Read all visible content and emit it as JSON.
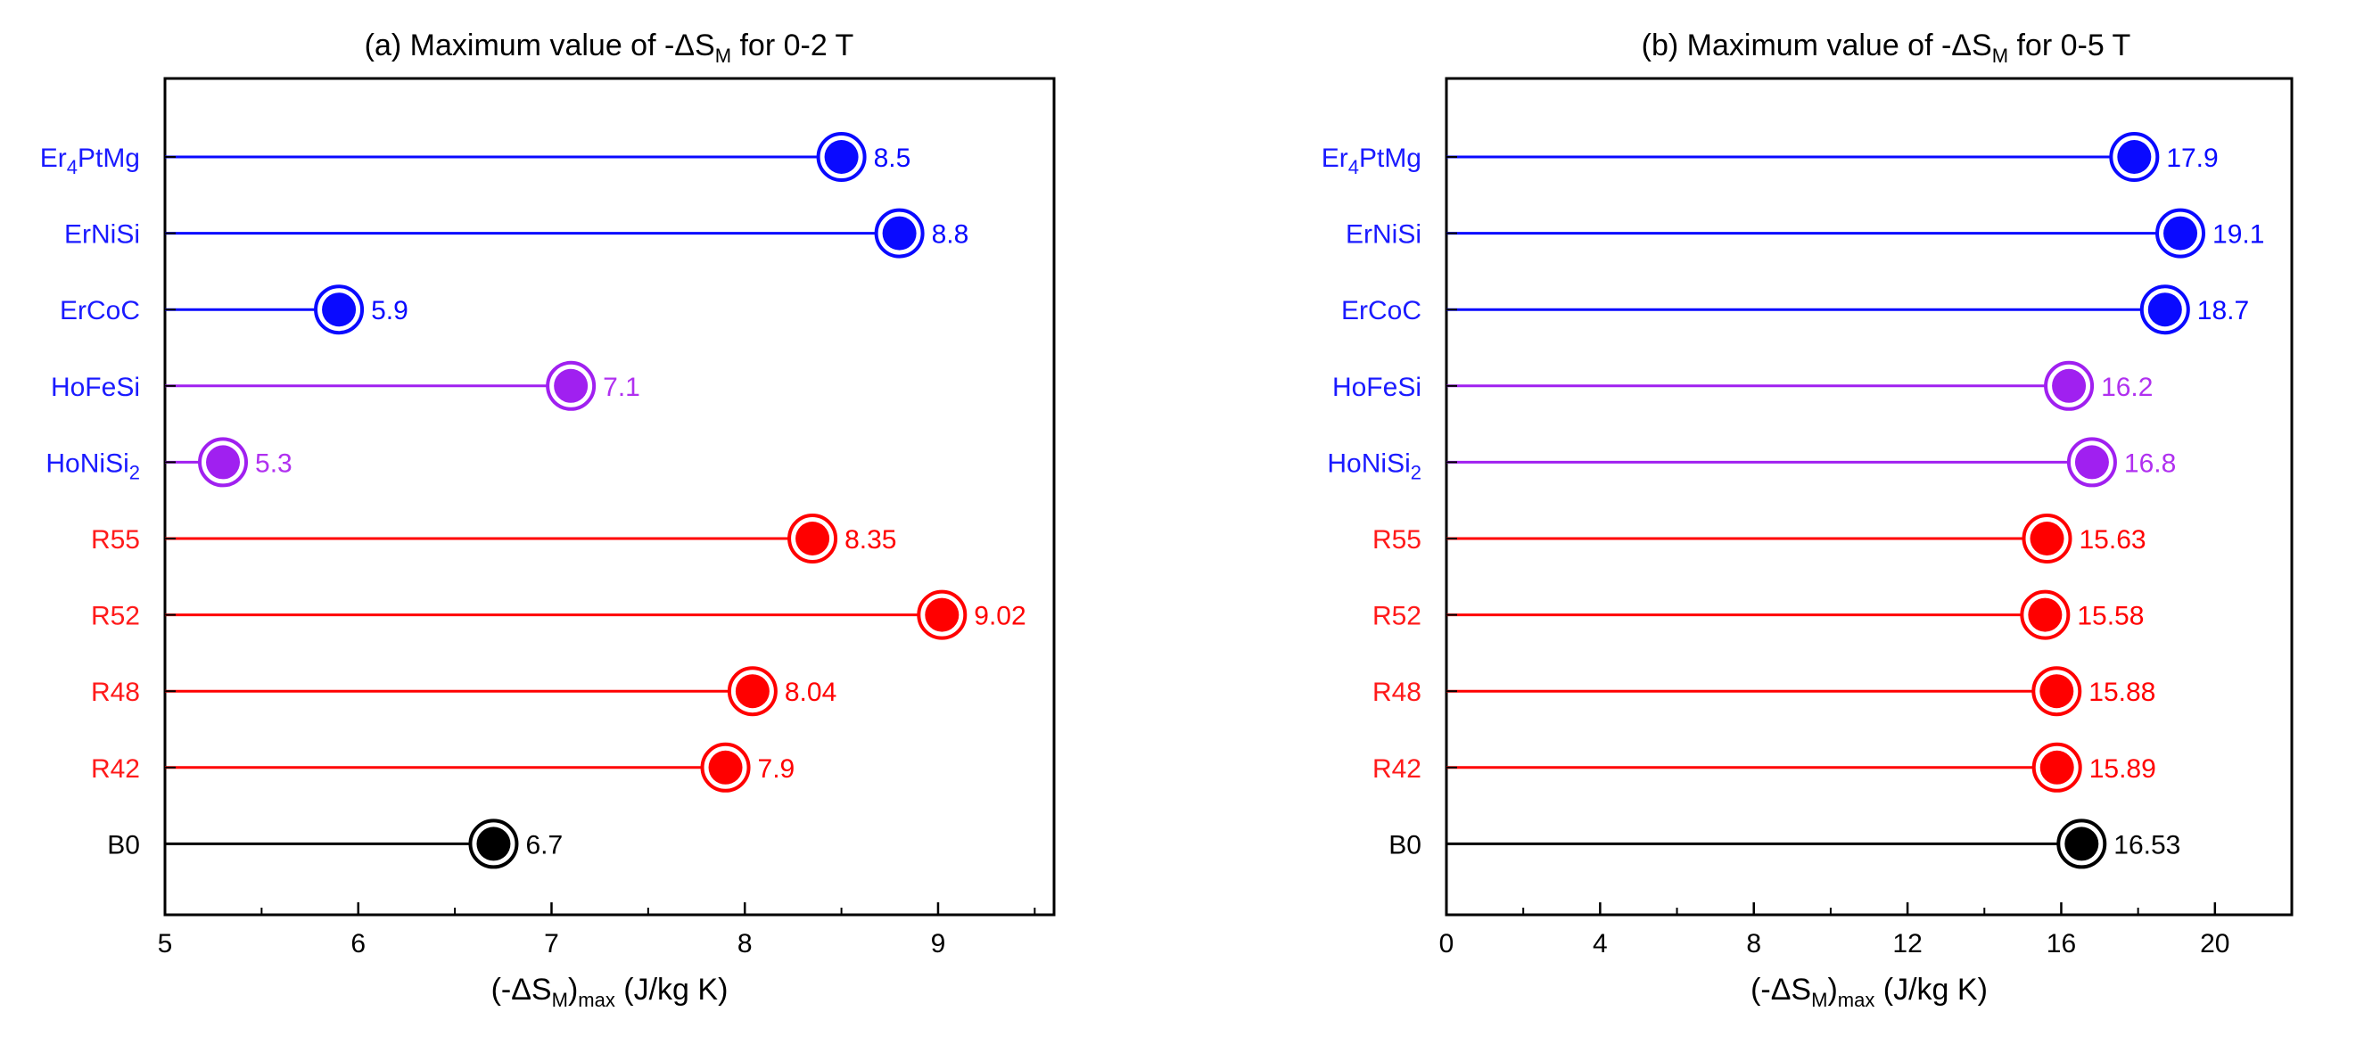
{
  "chart_data": [
    {
      "type": "lollipop",
      "title_prefix": "(a) Maximum value of -ΔS",
      "title_sub": "M",
      "title_suffix": " for 0-2 T",
      "xlabel_prefix": "(-ΔS",
      "xlabel_sub1": "M",
      "xlabel_mid": ")",
      "xlabel_sub2": "max",
      "xlabel_suffix": " (J/kg K)",
      "xlim": [
        5,
        9.6
      ],
      "xticks": [
        5,
        6,
        7,
        8,
        9
      ],
      "minor_step": 0.5,
      "ylabels_html": [
        {
          "base": "Er",
          "sub": "4",
          "rest": "PtMg"
        },
        {
          "base": "ErNiSi",
          "sub": "",
          "rest": ""
        },
        {
          "base": "ErCoC",
          "sub": "",
          "rest": ""
        },
        {
          "base": "HoFeSi",
          "sub": "",
          "rest": ""
        },
        {
          "base": "HoNiSi",
          "sub": "2",
          "rest": ""
        },
        {
          "base": "R55",
          "sub": "",
          "rest": ""
        },
        {
          "base": "R52",
          "sub": "",
          "rest": ""
        },
        {
          "base": "R48",
          "sub": "",
          "rest": ""
        },
        {
          "base": "R42",
          "sub": "",
          "rest": ""
        },
        {
          "base": "B0",
          "sub": "",
          "rest": ""
        }
      ],
      "categories": [
        "Er4PtMg",
        "ErNiSi",
        "ErCoC",
        "HoFeSi",
        "HoNiSi2",
        "R55",
        "R52",
        "R48",
        "R42",
        "B0"
      ],
      "values": [
        8.5,
        8.8,
        5.9,
        7.1,
        5.3,
        8.35,
        9.02,
        8.04,
        7.9,
        6.7
      ],
      "value_labels": [
        "8.5",
        "8.8",
        "5.9",
        "7.1",
        "5.3",
        "8.35",
        "9.02",
        "8.04",
        "7.9",
        "6.7"
      ],
      "label_colors": [
        "#1a1aff",
        "#1a1aff",
        "#1a1aff",
        "#1a1aff",
        "#1a1aff",
        "#ff1a1a",
        "#ff1a1a",
        "#ff1a1a",
        "#ff1a1a",
        "#000000"
      ],
      "marker_colors": [
        "#0a0aff",
        "#0a0aff",
        "#0a0aff",
        "#a020f0",
        "#a020f0",
        "#ff0000",
        "#ff0000",
        "#ff0000",
        "#ff0000",
        "#000000"
      ],
      "value_colors": [
        "#0a0aff",
        "#0a0aff",
        "#0a0aff",
        "#b030f0",
        "#b030f0",
        "#ff0000",
        "#ff0000",
        "#ff0000",
        "#ff0000",
        "#000000"
      ]
    },
    {
      "type": "lollipop",
      "title_prefix": "(b) Maximum value of -ΔS",
      "title_sub": "M",
      "title_suffix": " for 0-5 T",
      "xlabel_prefix": "(-ΔS",
      "xlabel_sub1": "M",
      "xlabel_mid": ")",
      "xlabel_sub2": "max",
      "xlabel_suffix": " (J/kg K)",
      "xlim": [
        0,
        22
      ],
      "xticks": [
        0,
        4,
        8,
        12,
        16,
        20
      ],
      "minor_step": 2,
      "ylabels_html": [
        {
          "base": "Er",
          "sub": "4",
          "rest": "PtMg"
        },
        {
          "base": "ErNiSi",
          "sub": "",
          "rest": ""
        },
        {
          "base": "ErCoC",
          "sub": "",
          "rest": ""
        },
        {
          "base": "HoFeSi",
          "sub": "",
          "rest": ""
        },
        {
          "base": "HoNiSi",
          "sub": "2",
          "rest": ""
        },
        {
          "base": "R55",
          "sub": "",
          "rest": ""
        },
        {
          "base": "R52",
          "sub": "",
          "rest": ""
        },
        {
          "base": "R48",
          "sub": "",
          "rest": ""
        },
        {
          "base": "R42",
          "sub": "",
          "rest": ""
        },
        {
          "base": "B0",
          "sub": "",
          "rest": ""
        }
      ],
      "categories": [
        "Er4PtMg",
        "ErNiSi",
        "ErCoC",
        "HoFeSi",
        "HoNiSi2",
        "R55",
        "R52",
        "R48",
        "R42",
        "B0"
      ],
      "values": [
        17.9,
        19.1,
        18.7,
        16.2,
        16.8,
        15.63,
        15.58,
        15.88,
        15.89,
        16.53
      ],
      "value_labels": [
        "17.9",
        "19.1",
        "18.7",
        "16.2",
        "16.8",
        "15.63",
        "15.58",
        "15.88",
        "15.89",
        "16.53"
      ],
      "label_colors": [
        "#1a1aff",
        "#1a1aff",
        "#1a1aff",
        "#1a1aff",
        "#1a1aff",
        "#ff1a1a",
        "#ff1a1a",
        "#ff1a1a",
        "#ff1a1a",
        "#000000"
      ],
      "marker_colors": [
        "#0a0aff",
        "#0a0aff",
        "#0a0aff",
        "#a020f0",
        "#a020f0",
        "#ff0000",
        "#ff0000",
        "#ff0000",
        "#ff0000",
        "#000000"
      ],
      "value_colors": [
        "#0a0aff",
        "#0a0aff",
        "#0a0aff",
        "#b030f0",
        "#b030f0",
        "#ff0000",
        "#ff0000",
        "#ff0000",
        "#ff0000",
        "#000000"
      ]
    }
  ]
}
